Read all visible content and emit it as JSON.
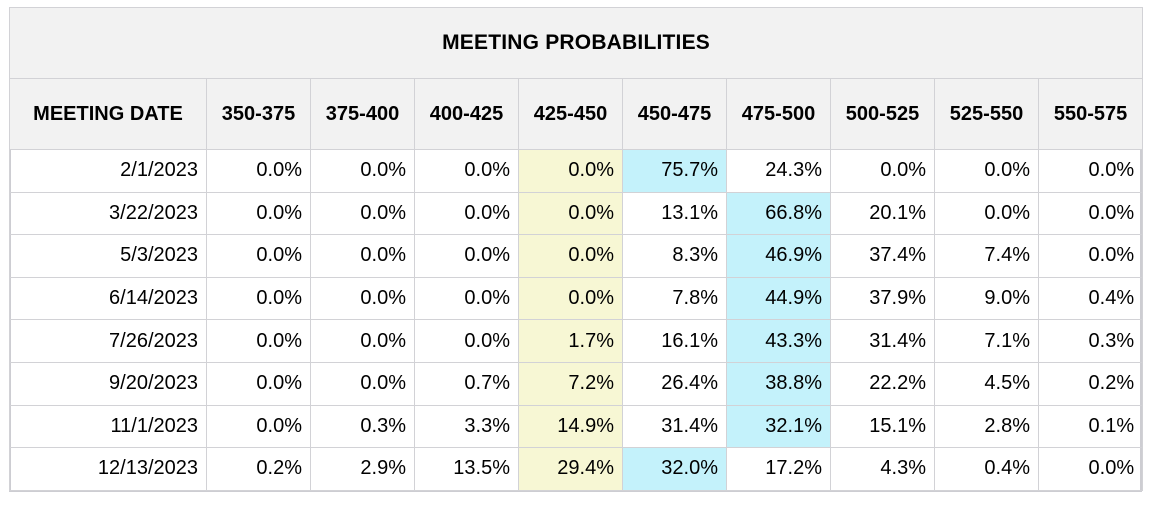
{
  "chart_data": {
    "type": "table",
    "title": "MEETING PROBABILITIES",
    "columns": [
      "MEETING DATE",
      "350-375",
      "375-400",
      "400-425",
      "425-450",
      "450-475",
      "475-500",
      "500-525",
      "525-550",
      "550-575"
    ],
    "rows": [
      {
        "date": "2/1/2023",
        "values": [
          "0.0%",
          "0.0%",
          "0.0%",
          "0.0%",
          "75.7%",
          "24.3%",
          "0.0%",
          "0.0%",
          "0.0%"
        ],
        "highlight_col": 4
      },
      {
        "date": "3/22/2023",
        "values": [
          "0.0%",
          "0.0%",
          "0.0%",
          "0.0%",
          "13.1%",
          "66.8%",
          "20.1%",
          "0.0%",
          "0.0%"
        ],
        "highlight_col": 5
      },
      {
        "date": "5/3/2023",
        "values": [
          "0.0%",
          "0.0%",
          "0.0%",
          "0.0%",
          "8.3%",
          "46.9%",
          "37.4%",
          "7.4%",
          "0.0%"
        ],
        "highlight_col": 5
      },
      {
        "date": "6/14/2023",
        "values": [
          "0.0%",
          "0.0%",
          "0.0%",
          "0.0%",
          "7.8%",
          "44.9%",
          "37.9%",
          "9.0%",
          "0.4%"
        ],
        "highlight_col": 5
      },
      {
        "date": "7/26/2023",
        "values": [
          "0.0%",
          "0.0%",
          "0.0%",
          "1.7%",
          "16.1%",
          "43.3%",
          "31.4%",
          "7.1%",
          "0.3%"
        ],
        "highlight_col": 5
      },
      {
        "date": "9/20/2023",
        "values": [
          "0.0%",
          "0.0%",
          "0.7%",
          "7.2%",
          "26.4%",
          "38.8%",
          "22.2%",
          "4.5%",
          "0.2%"
        ],
        "highlight_col": 5
      },
      {
        "date": "11/1/2023",
        "values": [
          "0.0%",
          "0.3%",
          "3.3%",
          "14.9%",
          "31.4%",
          "32.1%",
          "15.1%",
          "2.8%",
          "0.1%"
        ],
        "highlight_col": 5
      },
      {
        "date": "12/13/2023",
        "values": [
          "0.2%",
          "2.9%",
          "13.5%",
          "29.4%",
          "32.0%",
          "17.2%",
          "4.3%",
          "0.4%",
          "0.0%"
        ],
        "highlight_col": 4
      }
    ],
    "current_range_col": 3,
    "colors": {
      "header_bg": "#f2f2f2",
      "current_range_bg": "#f7f7d4",
      "highest_probability_bg": "#c4f2fb",
      "border": "#d2d2d6"
    }
  }
}
